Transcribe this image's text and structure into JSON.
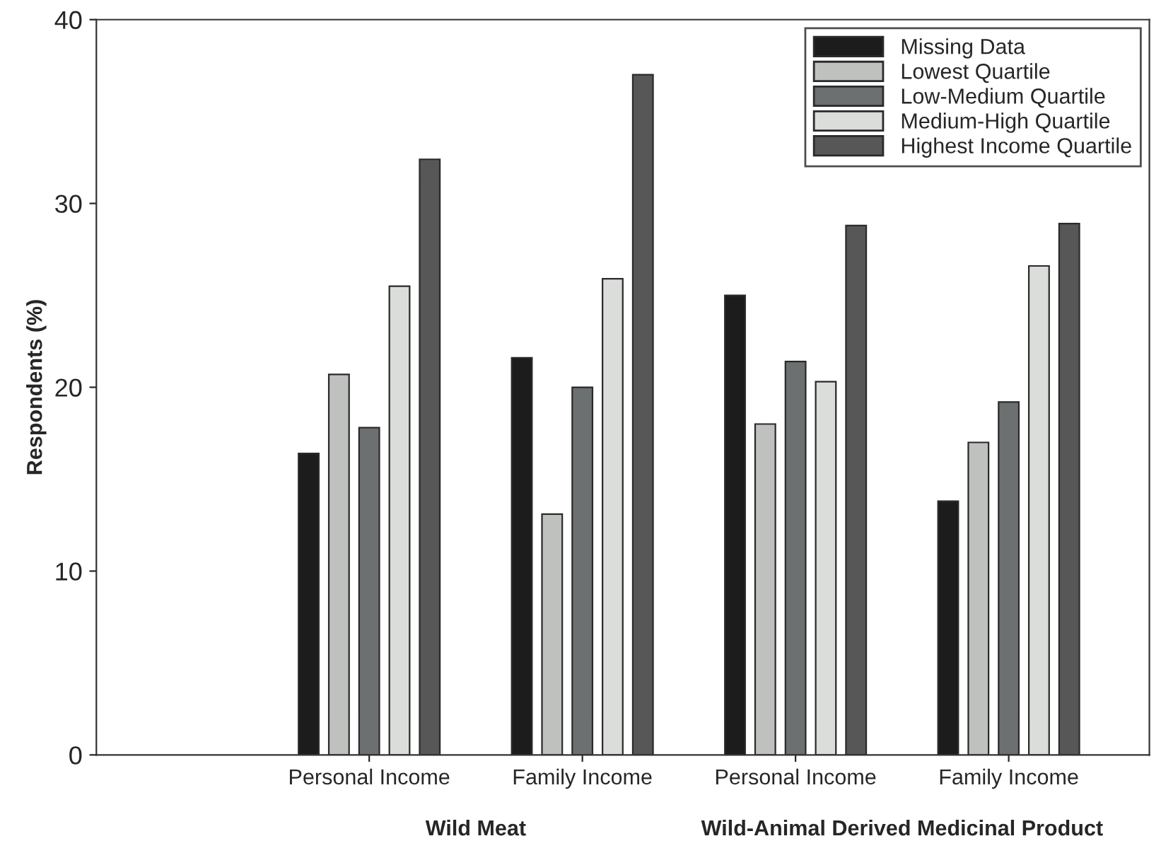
{
  "chart_data": {
    "type": "bar",
    "ylabel": "Respondents (%)",
    "categories": [
      "Personal Income",
      "Family Income",
      "Personal Income",
      "Family Income"
    ],
    "series": [
      {
        "name": "Missing Data",
        "color": "#1c1c1c",
        "values": [
          16.4,
          21.6,
          25.0,
          13.8
        ]
      },
      {
        "name": "Lowest Quartile",
        "color": "#bec1be",
        "values": [
          20.7,
          13.1,
          18.0,
          17.0
        ]
      },
      {
        "name": "Low-Medium Quartile",
        "color": "#6c7070",
        "values": [
          17.8,
          20.0,
          21.4,
          19.2
        ]
      },
      {
        "name": "Medium-High Quartile",
        "color": "#dadddA",
        "values": [
          25.5,
          25.9,
          20.3,
          26.6
        ]
      },
      {
        "name": "Highest Income Quartile",
        "color": "#575757",
        "values": [
          32.4,
          37.0,
          28.8,
          28.9
        ]
      }
    ],
    "annotations": [
      "Wild Meat",
      "Wild-Animal Derived Medicinal Product"
    ],
    "ylim": [
      0,
      40
    ],
    "yticks": [
      0,
      10,
      20,
      30,
      40
    ],
    "grid": false,
    "legend": "top right"
  }
}
